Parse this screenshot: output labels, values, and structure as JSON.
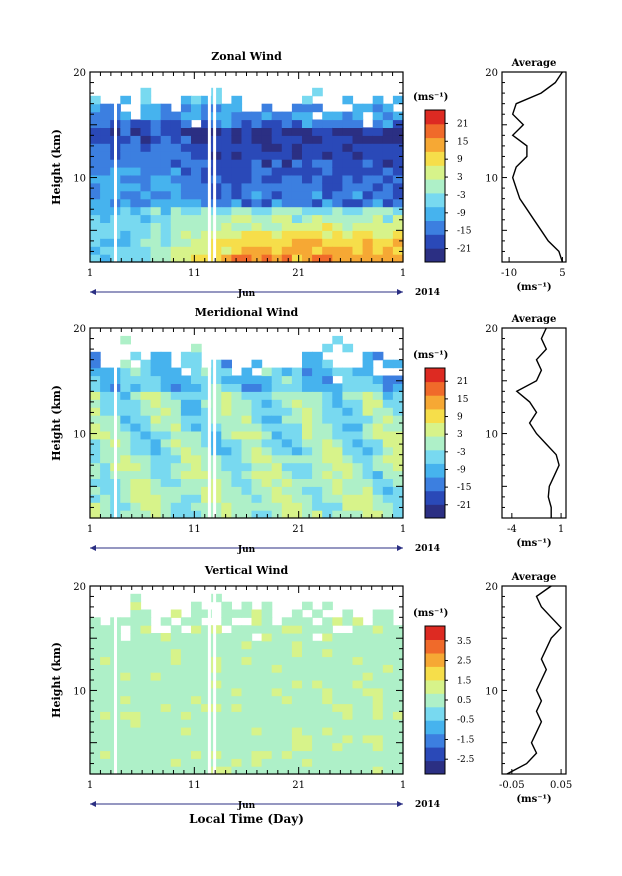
{
  "figure": {
    "shared_xlabel": "Local Time (Day)",
    "month_label": "Jun",
    "year_label": "2014"
  },
  "chart_data": [
    {
      "type": "heatmap",
      "title": "Zonal Wind",
      "ylabel": "Height (km)",
      "ylim": [
        2,
        20
      ],
      "xlim": [
        1,
        31
      ],
      "y_ticks": [
        "10",
        "20"
      ],
      "x_ticks": [
        "1",
        "11",
        "21",
        "1"
      ],
      "colorbar_unit": "(ms⁻¹)",
      "colorbar_labels": [
        "21",
        "15",
        "9",
        "3",
        "-3",
        "-9",
        "-15",
        "-21"
      ],
      "colorbar_range": [
        -24,
        24
      ],
      "palette": [
        "#2b2f83",
        "#2a49b8",
        "#3c7fe0",
        "#46b3ee",
        "#78d9f0",
        "#aef0c8",
        "#d7f38a",
        "#f6de4a",
        "#f6a834",
        "#f06a2a",
        "#dd2a22"
      ],
      "average_panel": {
        "title": "Average",
        "xlabel": "(ms⁻¹)",
        "x_ticks": [
          "-10",
          "5"
        ],
        "xlim": [
          -12,
          6
        ],
        "heights": [
          2,
          3,
          4,
          5,
          6,
          7,
          8,
          9,
          10,
          11,
          12,
          13,
          14,
          15,
          16,
          17,
          18,
          19,
          20
        ],
        "values": [
          5,
          4,
          1,
          -1,
          -3,
          -5,
          -7,
          -8,
          -9,
          -8,
          -5,
          -5,
          -9,
          -6,
          -9,
          -8,
          -1,
          3,
          5
        ]
      }
    },
    {
      "type": "heatmap",
      "title": "Meridional Wind",
      "ylabel": "Height (km)",
      "ylim": [
        2,
        20
      ],
      "xlim": [
        1,
        31
      ],
      "y_ticks": [
        "10",
        "20"
      ],
      "x_ticks": [
        "1",
        "11",
        "21",
        "1"
      ],
      "colorbar_unit": "(ms⁻¹)",
      "colorbar_labels": [
        "21",
        "15",
        "9",
        "3",
        "-3",
        "-9",
        "-15",
        "-21"
      ],
      "colorbar_range": [
        -24,
        24
      ],
      "palette": [
        "#2b2f83",
        "#2a49b8",
        "#3c7fe0",
        "#46b3ee",
        "#78d9f0",
        "#aef0c8",
        "#d7f38a",
        "#f6de4a",
        "#f6a834",
        "#f06a2a",
        "#dd2a22"
      ],
      "average_panel": {
        "title": "Average",
        "xlabel": "(ms⁻¹)",
        "x_ticks": [
          "-4",
          "1"
        ],
        "xlim": [
          -5,
          1.5
        ],
        "heights": [
          2,
          3,
          4,
          5,
          6,
          7,
          8,
          9,
          10,
          11,
          12,
          13,
          14,
          15,
          16,
          17,
          18,
          19,
          20
        ],
        "values": [
          0,
          0,
          -0.3,
          -0.2,
          0.3,
          0.8,
          0.5,
          -0.5,
          -1.5,
          -2.2,
          -1.5,
          -2.2,
          -3.5,
          -1.5,
          -1,
          -1.5,
          -0.5,
          -1,
          -0.5
        ]
      }
    },
    {
      "type": "heatmap",
      "title": "Vertical Wind",
      "ylabel": "Height (km)",
      "ylim": [
        2,
        20
      ],
      "xlim": [
        1,
        31
      ],
      "y_ticks": [
        "10",
        "20"
      ],
      "x_ticks": [
        "1",
        "11",
        "21",
        "1"
      ],
      "colorbar_unit": "(ms⁻¹)",
      "colorbar_labels": [
        "3.5",
        "2.5",
        "1.5",
        "0.5",
        "-0.5",
        "-1.5",
        "-2.5"
      ],
      "colorbar_range": [
        -3.5,
        3.5
      ],
      "palette": [
        "#2b2f83",
        "#2a49b8",
        "#3c7fe0",
        "#46b3ee",
        "#78d9f0",
        "#aef0c8",
        "#d7f38a",
        "#f6de4a",
        "#f6a834",
        "#f06a2a",
        "#dd2a22"
      ],
      "average_panel": {
        "title": "Average",
        "xlabel": "(ms⁻¹)",
        "x_ticks": [
          "-0.05",
          "0.05"
        ],
        "xlim": [
          -0.07,
          0.06
        ],
        "heights": [
          2,
          3,
          4,
          5,
          6,
          7,
          8,
          9,
          10,
          11,
          12,
          13,
          14,
          15,
          16,
          17,
          18,
          19,
          20
        ],
        "values": [
          -0.06,
          -0.02,
          0.0,
          -0.01,
          0.0,
          0.01,
          0.0,
          0.01,
          0.0,
          0.01,
          0.02,
          0.01,
          0.02,
          0.03,
          0.05,
          0.03,
          0.01,
          0.0,
          0.03
        ]
      }
    }
  ]
}
